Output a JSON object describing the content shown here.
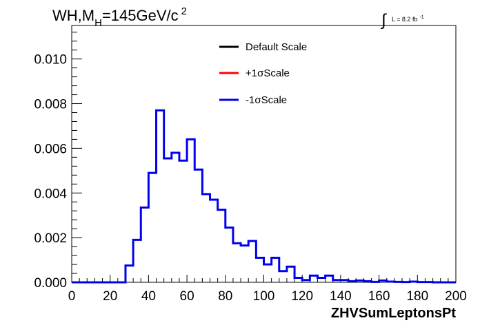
{
  "chart_data": {
    "type": "histogram",
    "title": {
      "main": "WH,M",
      "subscript": "H",
      "value": "=145GeV/c",
      "superscript": "2"
    },
    "luminosity": {
      "symbol": "∫",
      "text": "L = 8.2 fb",
      "superscript": "-1"
    },
    "xlabel": "ZHVSumLeptonsPt",
    "ylabel": "",
    "xlim": [
      0,
      200
    ],
    "ylim": [
      0,
      0.0115
    ],
    "xticks": [
      0,
      20,
      40,
      60,
      80,
      100,
      120,
      140,
      160,
      180,
      200
    ],
    "xtick_labels": [
      "0",
      "20",
      "40",
      "60",
      "80",
      "100",
      "120",
      "140",
      "160",
      "180",
      "200"
    ],
    "yticks": [
      0,
      0.002,
      0.004,
      0.006,
      0.008,
      0.01
    ],
    "ytick_labels": [
      "0.000",
      "0.002",
      "0.004",
      "0.006",
      "0.008",
      "0.010"
    ],
    "bin_width": 4,
    "bin_edges_start": 0,
    "legend_position": "top-center",
    "legend": [
      {
        "label": "Default Scale",
        "color": "#000000"
      },
      {
        "label": "+1σScale",
        "color": "#ff0000"
      },
      {
        "label": "-1σScale",
        "color": "#0000ee"
      }
    ],
    "series": [
      {
        "name": "-1σScale",
        "color": "#0000ee",
        "values": [
          0,
          0,
          0,
          0,
          0,
          0,
          0,
          0.00075,
          0.0019,
          0.00335,
          0.0049,
          0.0077,
          0.00555,
          0.0058,
          0.00545,
          0.0064,
          0.00505,
          0.00395,
          0.0037,
          0.00325,
          0.00245,
          0.00175,
          0.00165,
          0.00185,
          0.0011,
          0.0008,
          0.0011,
          0.0005,
          0.0007,
          0.0002,
          0.0001,
          0.0003,
          0.0002,
          0.0003,
          0.0001,
          0.0001,
          5e-05,
          8e-05,
          5e-05,
          2e-05,
          8e-05,
          3e-05,
          2e-05,
          1e-05,
          3e-05,
          1e-05,
          1e-05,
          0,
          0,
          0
        ]
      }
    ]
  }
}
